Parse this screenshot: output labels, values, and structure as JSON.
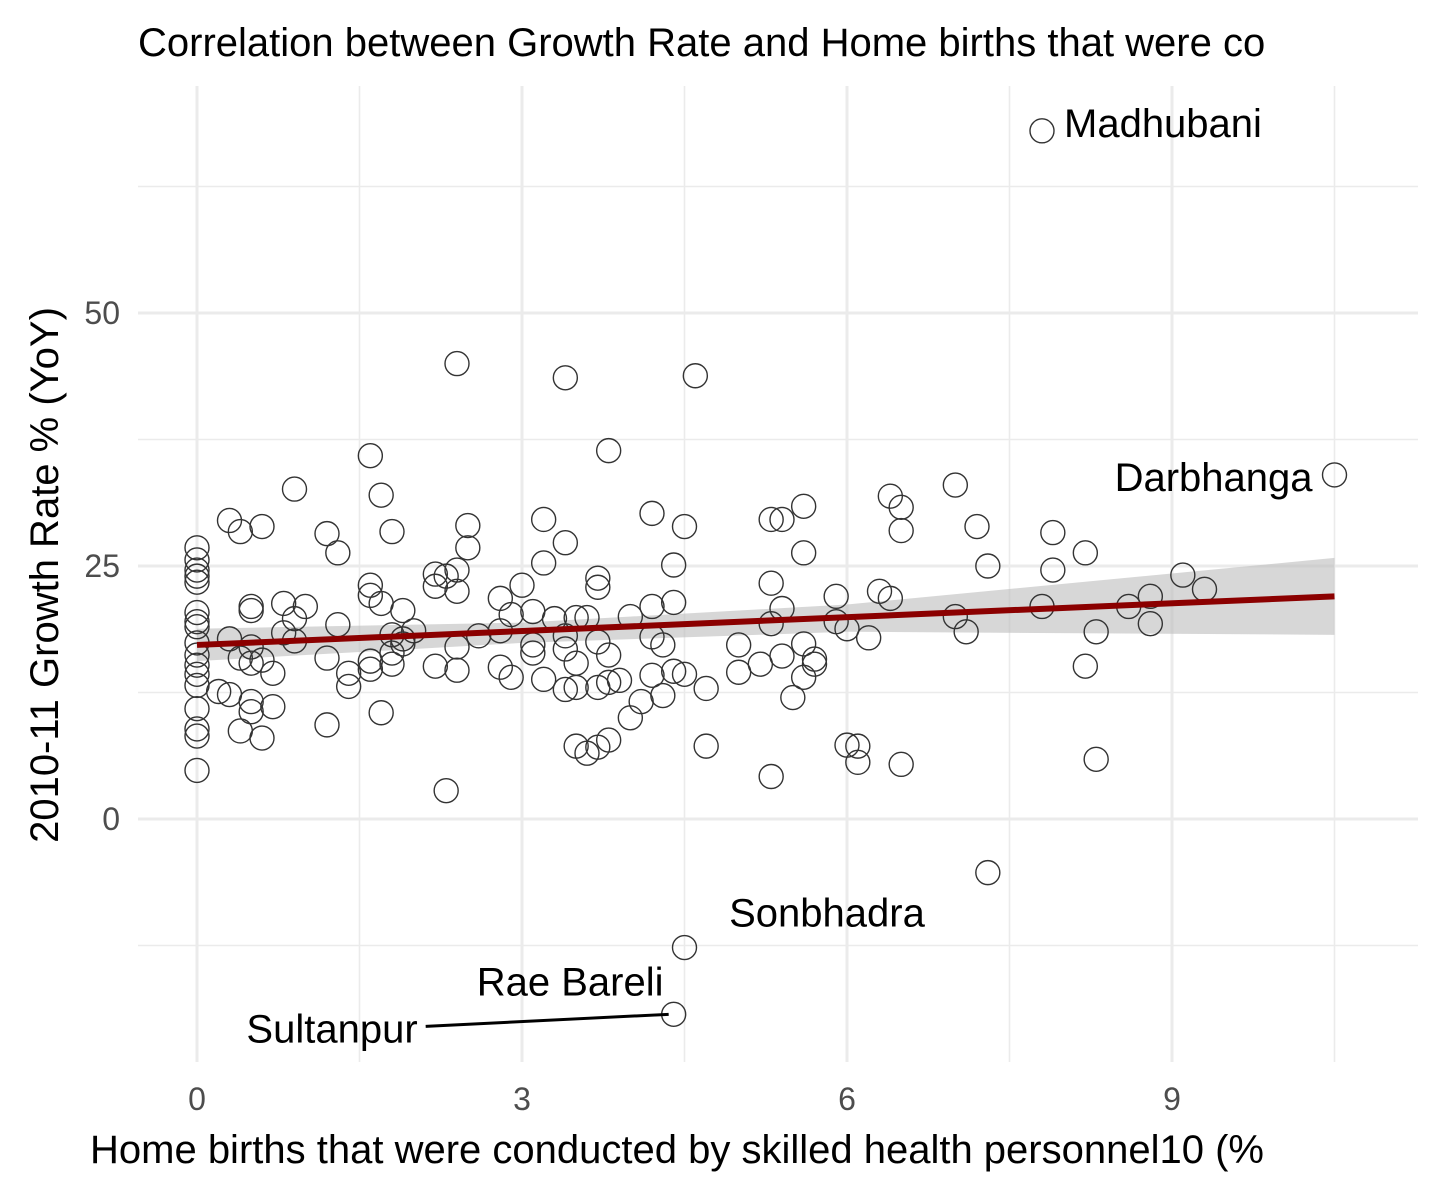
{
  "chart_data": {
    "type": "scatter",
    "title": "Correlation between Growth Rate and Home births that were co",
    "xlabel": "Home births that were conducted by skilled health personnel10 (%",
    "ylabel": "2010-11 Growth Rate % (YoY)",
    "xlim": [
      -0.5,
      11.3
    ],
    "ylim": [
      -24,
      73
    ],
    "x_ticks": [
      0,
      3,
      6,
      9
    ],
    "y_ticks": [
      0,
      25,
      50
    ],
    "x_tick_labels": [
      "0",
      "3",
      "6",
      "9"
    ],
    "y_tick_labels": [
      "0",
      "25",
      "50"
    ],
    "grid": true,
    "legend": "none",
    "colors": {
      "trend_line": "#8b0000",
      "confidence_band": "#bdbdbd",
      "points": "#333333",
      "grid": "#ebebeb"
    },
    "trend_line": {
      "x_start": 0,
      "y_start": 17.2,
      "x_end": 10.5,
      "y_end": 22.0
    },
    "confidence_band": {
      "x": [
        0,
        3,
        6,
        10.5
      ],
      "lower": [
        15.6,
        17.4,
        18.5,
        18.2
      ],
      "upper": [
        18.8,
        19.4,
        21.2,
        25.8
      ]
    },
    "annotations": [
      {
        "label": "Madhubani",
        "x": 7.8,
        "y": 68
      },
      {
        "label": "Darbhanga",
        "x": 10.5,
        "y": 34
      },
      {
        "label": "Sonbhadra",
        "x": 7.3,
        "y": -5.3
      },
      {
        "label": "Rae Bareli",
        "x": 4.5,
        "y": -12.7
      },
      {
        "label": "Sultanpur",
        "x": 4.4,
        "y": -19.3
      }
    ],
    "points": [
      {
        "x": 7.8,
        "y": 68.0
      },
      {
        "x": 10.5,
        "y": 34.0
      },
      {
        "x": 7.3,
        "y": -5.3
      },
      {
        "x": 4.5,
        "y": -12.7
      },
      {
        "x": 4.4,
        "y": -19.3
      },
      {
        "x": 2.4,
        "y": 45.0
      },
      {
        "x": 3.4,
        "y": 43.6
      },
      {
        "x": 4.6,
        "y": 43.8
      },
      {
        "x": 3.8,
        "y": 36.4
      },
      {
        "x": 1.6,
        "y": 35.9
      },
      {
        "x": 0.9,
        "y": 32.6
      },
      {
        "x": 1.7,
        "y": 32.0
      },
      {
        "x": 7.0,
        "y": 33.0
      },
      {
        "x": 6.4,
        "y": 31.9
      },
      {
        "x": 5.6,
        "y": 30.9
      },
      {
        "x": 6.5,
        "y": 30.8
      },
      {
        "x": 4.2,
        "y": 30.2
      },
      {
        "x": 3.2,
        "y": 29.6
      },
      {
        "x": 5.3,
        "y": 29.6
      },
      {
        "x": 5.4,
        "y": 29.6
      },
      {
        "x": 0.3,
        "y": 29.5
      },
      {
        "x": 2.5,
        "y": 29.0
      },
      {
        "x": 0.6,
        "y": 28.9
      },
      {
        "x": 4.5,
        "y": 28.9
      },
      {
        "x": 7.2,
        "y": 28.9
      },
      {
        "x": 6.5,
        "y": 28.5
      },
      {
        "x": 0.4,
        "y": 28.4
      },
      {
        "x": 1.8,
        "y": 28.4
      },
      {
        "x": 1.2,
        "y": 28.2
      },
      {
        "x": 7.9,
        "y": 28.3
      },
      {
        "x": 3.4,
        "y": 27.3
      },
      {
        "x": 0,
        "y": 26.8
      },
      {
        "x": 2.5,
        "y": 26.8
      },
      {
        "x": 1.3,
        "y": 26.3
      },
      {
        "x": 5.6,
        "y": 26.3
      },
      {
        "x": 8.2,
        "y": 26.3
      },
      {
        "x": 0,
        "y": 25.6
      },
      {
        "x": 3.2,
        "y": 25.3
      },
      {
        "x": 4.4,
        "y": 25.1
      },
      {
        "x": 7.3,
        "y": 25.0
      },
      {
        "x": 0,
        "y": 24.6
      },
      {
        "x": 2.4,
        "y": 24.6
      },
      {
        "x": 2.2,
        "y": 24.2
      },
      {
        "x": 7.9,
        "y": 24.6
      },
      {
        "x": 0,
        "y": 24.0
      },
      {
        "x": 2.3,
        "y": 24.0
      },
      {
        "x": 9.1,
        "y": 24.1
      },
      {
        "x": 3.7,
        "y": 23.8
      },
      {
        "x": 0,
        "y": 23.4
      },
      {
        "x": 5.3,
        "y": 23.3
      },
      {
        "x": 1.6,
        "y": 23.1
      },
      {
        "x": 3.0,
        "y": 23.1
      },
      {
        "x": 2.2,
        "y": 23.0
      },
      {
        "x": 3.7,
        "y": 22.9
      },
      {
        "x": 2.4,
        "y": 22.5
      },
      {
        "x": 6.3,
        "y": 22.5
      },
      {
        "x": 9.3,
        "y": 22.7
      },
      {
        "x": 1.6,
        "y": 22.1
      },
      {
        "x": 5.9,
        "y": 22.0
      },
      {
        "x": 6.4,
        "y": 21.8
      },
      {
        "x": 8.8,
        "y": 22.0
      },
      {
        "x": 2.8,
        "y": 21.8
      },
      {
        "x": 1.7,
        "y": 21.3
      },
      {
        "x": 4.4,
        "y": 21.4
      },
      {
        "x": 0.8,
        "y": 21.3
      },
      {
        "x": 1.0,
        "y": 21.0
      },
      {
        "x": 4.2,
        "y": 21.0
      },
      {
        "x": 8.6,
        "y": 21.0
      },
      {
        "x": 0.5,
        "y": 21.0
      },
      {
        "x": 7.8,
        "y": 21.0
      },
      {
        "x": 5.4,
        "y": 20.8
      },
      {
        "x": 0.5,
        "y": 20.6
      },
      {
        "x": 1.9,
        "y": 20.6
      },
      {
        "x": 3.1,
        "y": 20.5
      },
      {
        "x": 0,
        "y": 20.4
      },
      {
        "x": 2.9,
        "y": 20.2
      },
      {
        "x": 4.0,
        "y": 20.0
      },
      {
        "x": 7.0,
        "y": 20.0
      },
      {
        "x": 3.5,
        "y": 19.9
      },
      {
        "x": 3.3,
        "y": 19.8
      },
      {
        "x": 0.9,
        "y": 19.8
      },
      {
        "x": 3.6,
        "y": 19.9
      },
      {
        "x": 0,
        "y": 19.5
      },
      {
        "x": 5.9,
        "y": 19.5
      },
      {
        "x": 5.3,
        "y": 19.3
      },
      {
        "x": 8.8,
        "y": 19.3
      },
      {
        "x": 1.3,
        "y": 19.2
      },
      {
        "x": 0,
        "y": 19.0
      },
      {
        "x": 6.0,
        "y": 18.8
      },
      {
        "x": 2.0,
        "y": 18.6
      },
      {
        "x": 2.8,
        "y": 18.6
      },
      {
        "x": 8.3,
        "y": 18.5
      },
      {
        "x": 7.1,
        "y": 18.5
      },
      {
        "x": 0.8,
        "y": 18.4
      },
      {
        "x": 1.8,
        "y": 18.2
      },
      {
        "x": 3.4,
        "y": 18.1
      },
      {
        "x": 2.6,
        "y": 18.1
      },
      {
        "x": 6.2,
        "y": 17.9
      },
      {
        "x": 4.2,
        "y": 18.0
      },
      {
        "x": 1.9,
        "y": 17.8
      },
      {
        "x": 0.3,
        "y": 17.8
      },
      {
        "x": 0.9,
        "y": 17.6
      },
      {
        "x": 1.9,
        "y": 17.3
      },
      {
        "x": 3.7,
        "y": 17.5
      },
      {
        "x": 0,
        "y": 17.4
      },
      {
        "x": 5.6,
        "y": 17.3
      },
      {
        "x": 3.1,
        "y": 17.2
      },
      {
        "x": 4.3,
        "y": 17.2
      },
      {
        "x": 5.0,
        "y": 17.2
      },
      {
        "x": 0.5,
        "y": 17.0
      },
      {
        "x": 2.4,
        "y": 17.0
      },
      {
        "x": 3.4,
        "y": 16.8
      },
      {
        "x": 3.1,
        "y": 16.4
      },
      {
        "x": 1.8,
        "y": 16.4
      },
      {
        "x": 3.8,
        "y": 16.2
      },
      {
        "x": 5.4,
        "y": 16.1
      },
      {
        "x": 0,
        "y": 16.2
      },
      {
        "x": 1.2,
        "y": 15.9
      },
      {
        "x": 0.4,
        "y": 15.9
      },
      {
        "x": 5.7,
        "y": 15.8
      },
      {
        "x": 0.6,
        "y": 15.7
      },
      {
        "x": 1.6,
        "y": 15.6
      },
      {
        "x": 3.5,
        "y": 15.4
      },
      {
        "x": 0.5,
        "y": 15.4
      },
      {
        "x": 5.7,
        "y": 15.3
      },
      {
        "x": 1.8,
        "y": 15.3
      },
      {
        "x": 5.2,
        "y": 15.3
      },
      {
        "x": 8.2,
        "y": 15.1
      },
      {
        "x": 0,
        "y": 15.2
      },
      {
        "x": 2.2,
        "y": 15.1
      },
      {
        "x": 2.8,
        "y": 15.0
      },
      {
        "x": 1.6,
        "y": 14.8
      },
      {
        "x": 2.4,
        "y": 14.7
      },
      {
        "x": 4.4,
        "y": 14.6
      },
      {
        "x": 5.0,
        "y": 14.5
      },
      {
        "x": 1.4,
        "y": 14.4
      },
      {
        "x": 0.7,
        "y": 14.4
      },
      {
        "x": 0,
        "y": 14.3
      },
      {
        "x": 4.2,
        "y": 14.2
      },
      {
        "x": 4.5,
        "y": 14.3
      },
      {
        "x": 5.6,
        "y": 14.0
      },
      {
        "x": 2.9,
        "y": 14.0
      },
      {
        "x": 3.2,
        "y": 13.8
      },
      {
        "x": 3.9,
        "y": 13.7
      },
      {
        "x": 3.8,
        "y": 13.5
      },
      {
        "x": 0,
        "y": 13.2
      },
      {
        "x": 1.4,
        "y": 13.1
      },
      {
        "x": 3.5,
        "y": 13.0
      },
      {
        "x": 3.7,
        "y": 13.0
      },
      {
        "x": 3.4,
        "y": 12.8
      },
      {
        "x": 4.7,
        "y": 12.9
      },
      {
        "x": 0.2,
        "y": 12.6
      },
      {
        "x": 0.3,
        "y": 12.3
      },
      {
        "x": 4.3,
        "y": 12.2
      },
      {
        "x": 5.5,
        "y": 12.0
      },
      {
        "x": 0.5,
        "y": 11.6
      },
      {
        "x": 4.1,
        "y": 11.6
      },
      {
        "x": 0.7,
        "y": 11.1
      },
      {
        "x": 0,
        "y": 10.9
      },
      {
        "x": 0.5,
        "y": 10.6
      },
      {
        "x": 1.7,
        "y": 10.5
      },
      {
        "x": 4.0,
        "y": 10.0
      },
      {
        "x": 1.2,
        "y": 9.3
      },
      {
        "x": 0,
        "y": 8.9
      },
      {
        "x": 0.4,
        "y": 8.7
      },
      {
        "x": 0,
        "y": 8.2
      },
      {
        "x": 0.6,
        "y": 8.0
      },
      {
        "x": 3.8,
        "y": 7.8
      },
      {
        "x": 3.5,
        "y": 7.2
      },
      {
        "x": 3.7,
        "y": 7.1
      },
      {
        "x": 4.7,
        "y": 7.2
      },
      {
        "x": 6.0,
        "y": 7.3
      },
      {
        "x": 6.1,
        "y": 7.2
      },
      {
        "x": 3.6,
        "y": 6.5
      },
      {
        "x": 8.3,
        "y": 5.9
      },
      {
        "x": 6.1,
        "y": 5.6
      },
      {
        "x": 6.5,
        "y": 5.4
      },
      {
        "x": 0,
        "y": 4.8
      },
      {
        "x": 5.3,
        "y": 4.2
      },
      {
        "x": 2.3,
        "y": 2.8
      }
    ]
  }
}
